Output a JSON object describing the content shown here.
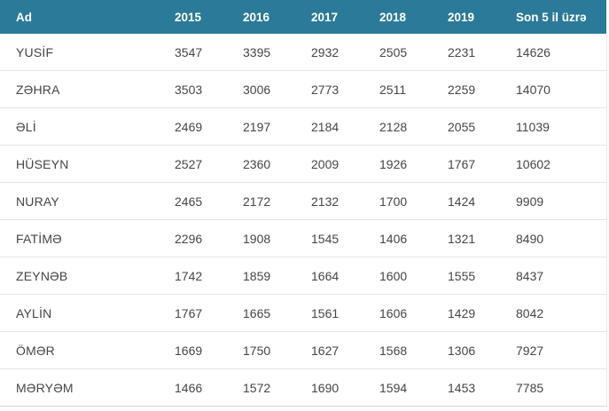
{
  "table": {
    "columns": [
      "Ad",
      "2015",
      "2016",
      "2017",
      "2018",
      "2019",
      "Son 5 il üzrə"
    ],
    "rows": [
      {
        "name": "YUSİF",
        "values": [
          "3547",
          "3395",
          "2932",
          "2505",
          "2231",
          "14626"
        ]
      },
      {
        "name": "ZƏHRA",
        "values": [
          "3503",
          "3006",
          "2773",
          "2511",
          "2259",
          "14070"
        ]
      },
      {
        "name": "ƏLİ",
        "values": [
          "2469",
          "2197",
          "2184",
          "2128",
          "2055",
          "11039"
        ]
      },
      {
        "name": "HÜSEYN",
        "values": [
          "2527",
          "2360",
          "2009",
          "1926",
          "1767",
          "10602"
        ]
      },
      {
        "name": "NURAY",
        "values": [
          "2465",
          "2172",
          "2132",
          "1700",
          "1424",
          "9909"
        ]
      },
      {
        "name": "FATİMƏ",
        "values": [
          "2296",
          "1908",
          "1545",
          "1406",
          "1321",
          "8490"
        ]
      },
      {
        "name": "ZEYNƏB",
        "values": [
          "1742",
          "1859",
          "1664",
          "1600",
          "1555",
          "8437"
        ]
      },
      {
        "name": "AYLİN",
        "values": [
          "1767",
          "1665",
          "1561",
          "1606",
          "1429",
          "8042"
        ]
      },
      {
        "name": "ÖMƏR",
        "values": [
          "1669",
          "1750",
          "1627",
          "1568",
          "1306",
          "7927"
        ]
      },
      {
        "name": "MƏRYƏM",
        "values": [
          "1466",
          "1572",
          "1690",
          "1594",
          "1453",
          "7785"
        ]
      }
    ]
  },
  "colors": {
    "header_bg": "#2b7a99",
    "header_text": "#ffffff",
    "cell_text": "#454545",
    "row_border": "#e5e5e5"
  }
}
